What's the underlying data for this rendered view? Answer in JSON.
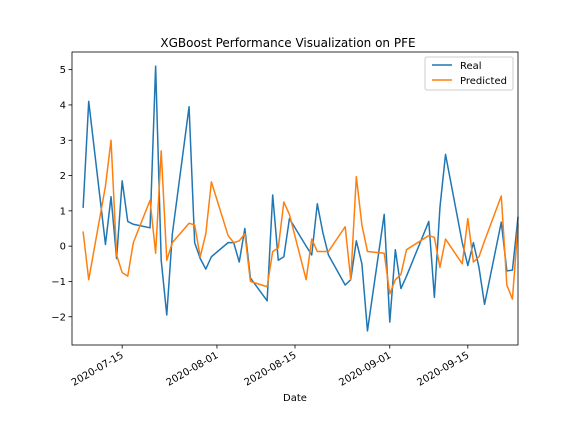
{
  "chart_data": {
    "type": "line",
    "title": "XGBoost Performance Visualization on PFE",
    "xlabel": "Date",
    "ylabel": "",
    "x_ticks": [
      "2020-07-15",
      "2020-08-01",
      "2020-08-15",
      "2020-09-01",
      "2020-09-15"
    ],
    "y_ticks": [
      "5",
      "4",
      "3",
      "2",
      "1",
      "0",
      "−1",
      "−2"
    ],
    "y_tick_values": [
      5,
      4,
      3,
      2,
      1,
      0,
      -1,
      -2
    ],
    "xlim": [
      "2020-07-06",
      "2020-09-24"
    ],
    "ylim": [
      -2.8,
      5.5
    ],
    "grid": false,
    "legend_position": "top-right",
    "x": [
      "2020-07-08",
      "2020-07-09",
      "2020-07-12",
      "2020-07-13",
      "2020-07-14",
      "2020-07-15",
      "2020-07-16",
      "2020-07-17",
      "2020-07-20",
      "2020-07-21",
      "2020-07-22",
      "2020-07-23",
      "2020-07-24",
      "2020-07-27",
      "2020-07-28",
      "2020-07-29",
      "2020-07-30",
      "2020-07-31",
      "2020-08-03",
      "2020-08-04",
      "2020-08-05",
      "2020-08-06",
      "2020-08-07",
      "2020-08-10",
      "2020-08-11",
      "2020-08-12",
      "2020-08-13",
      "2020-08-14",
      "2020-08-17",
      "2020-08-18",
      "2020-08-19",
      "2020-08-20",
      "2020-08-21",
      "2020-08-24",
      "2020-08-25",
      "2020-08-26",
      "2020-08-27",
      "2020-08-28",
      "2020-08-31",
      "2020-09-01",
      "2020-09-02",
      "2020-09-03",
      "2020-09-04",
      "2020-09-08",
      "2020-09-09",
      "2020-09-10",
      "2020-09-11",
      "2020-09-14",
      "2020-09-15",
      "2020-09-16",
      "2020-09-17",
      "2020-09-18",
      "2020-09-21",
      "2020-09-22",
      "2020-09-23",
      "2020-09-24"
    ],
    "series": [
      {
        "name": "Real",
        "color": "#1f77b4",
        "values": [
          1.1,
          4.1,
          0.05,
          1.4,
          -0.35,
          1.85,
          0.7,
          0.62,
          0.52,
          5.1,
          -0.4,
          -1.95,
          0.35,
          3.95,
          0.1,
          -0.35,
          -0.65,
          -0.3,
          0.1,
          0.1,
          -0.45,
          0.5,
          -0.9,
          -1.55,
          1.45,
          -0.4,
          -0.3,
          0.78,
          0.0,
          -0.25,
          1.2,
          0.38,
          -0.25,
          -1.1,
          -0.95,
          0.15,
          -0.5,
          -2.4,
          0.9,
          -2.15,
          -0.1,
          -1.2,
          -0.85,
          0.7,
          -1.45,
          1.1,
          2.6,
          0.1,
          -0.55,
          0.1,
          -0.6,
          -1.65,
          0.68,
          -0.7,
          -0.68,
          0.82
        ]
      },
      {
        "name": "Predicted",
        "color": "#ff7f0e",
        "values": [
          0.4,
          -0.95,
          1.7,
          3.0,
          -0.25,
          -0.75,
          -0.85,
          0.1,
          1.3,
          -0.2,
          2.7,
          -0.4,
          0.1,
          0.65,
          0.6,
          -0.3,
          0.35,
          1.82,
          0.3,
          0.1,
          0.15,
          0.35,
          -1.0,
          -1.15,
          -0.15,
          -0.05,
          1.25,
          0.9,
          -0.95,
          0.2,
          -0.15,
          -0.15,
          -0.15,
          0.55,
          -0.95,
          1.97,
          0.6,
          -0.15,
          -0.2,
          -1.35,
          -0.95,
          -0.8,
          -0.1,
          0.3,
          0.25,
          -0.6,
          0.2,
          -0.5,
          0.78,
          -0.45,
          -0.3,
          0.15,
          1.42,
          -1.1,
          -1.5,
          0.6
        ]
      }
    ]
  }
}
